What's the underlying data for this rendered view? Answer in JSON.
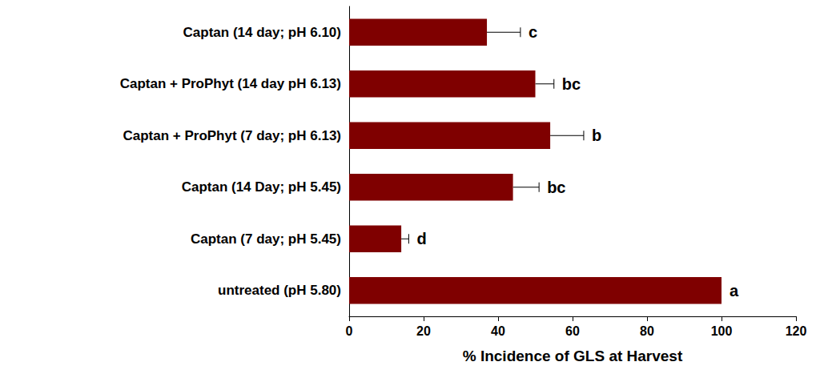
{
  "chart_data": {
    "type": "bar",
    "orientation": "horizontal",
    "categories": [
      "Captan (14 day; pH 6.10)",
      "Captan + ProPhyt (14 day pH 6.13)",
      "Captan + ProPhyt (7 day; pH 6.13)",
      "Captan (14 Day; pH 5.45)",
      "Captan (7 day; pH 5.45)",
      "untreated (pH 5.80)"
    ],
    "values": [
      37,
      50,
      54,
      44,
      14,
      100
    ],
    "errors": [
      9,
      5,
      9,
      7,
      2,
      null
    ],
    "annotations": [
      "c",
      "bc",
      "b",
      "bc",
      "d",
      "a"
    ],
    "color": "#7f0000",
    "xlabel": "% Incidence of GLS at Harvest",
    "xlim": [
      0,
      120
    ],
    "xticks": [
      0,
      20,
      40,
      60,
      80,
      100,
      120
    ],
    "grid": false
  }
}
